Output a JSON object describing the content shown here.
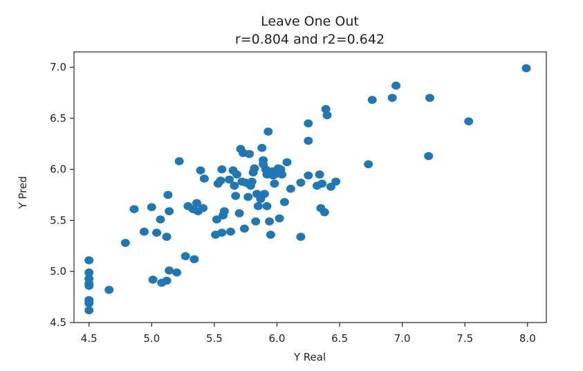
{
  "chart_data": {
    "type": "scatter",
    "title": "Leave One Out",
    "subtitle": "r=0.804 and r2=0.642",
    "xlabel": "Y Real",
    "ylabel": "Y Pred",
    "xlim": [
      4.38,
      8.15
    ],
    "ylim": [
      4.5,
      7.15
    ],
    "x_ticks": [
      4.5,
      5.0,
      5.5,
      6.0,
      6.5,
      7.0,
      7.5,
      8.0
    ],
    "x_tick_labels": [
      "4.5",
      "5.0",
      "5.5",
      "6.0",
      "6.5",
      "7.0",
      "7.5",
      "8.0"
    ],
    "y_ticks": [
      4.5,
      5.0,
      5.5,
      6.0,
      6.5,
      7.0
    ],
    "y_tick_labels": [
      "4.5",
      "5.0",
      "5.5",
      "6.0",
      "6.5",
      "7.0"
    ],
    "grid": false,
    "marker_color": "#1f77b4",
    "series": [
      {
        "points": [
          [
            4.5,
            5.11
          ],
          [
            4.5,
            4.99
          ],
          [
            4.5,
            4.93
          ],
          [
            4.5,
            4.88
          ],
          [
            4.5,
            4.86
          ],
          [
            4.5,
            4.72
          ],
          [
            4.5,
            4.69
          ],
          [
            4.5,
            4.62
          ],
          [
            4.66,
            4.82
          ],
          [
            4.79,
            5.28
          ],
          [
            4.86,
            5.61
          ],
          [
            4.94,
            5.39
          ],
          [
            5.0,
            5.63
          ],
          [
            5.01,
            4.92
          ],
          [
            5.04,
            5.38
          ],
          [
            5.07,
            5.51
          ],
          [
            5.08,
            4.89
          ],
          [
            5.12,
            4.91
          ],
          [
            5.12,
            5.34
          ],
          [
            5.13,
            5.75
          ],
          [
            5.14,
            5.59
          ],
          [
            5.14,
            5.01
          ],
          [
            5.2,
            4.99
          ],
          [
            5.22,
            6.08
          ],
          [
            5.27,
            5.15
          ],
          [
            5.29,
            5.64
          ],
          [
            5.33,
            5.61
          ],
          [
            5.34,
            5.12
          ],
          [
            5.36,
            5.67
          ],
          [
            5.37,
            5.59
          ],
          [
            5.39,
            5.99
          ],
          [
            5.41,
            5.62
          ],
          [
            5.42,
            5.91
          ],
          [
            5.51,
            5.36
          ],
          [
            5.52,
            5.51
          ],
          [
            5.53,
            5.86
          ],
          [
            5.55,
            5.89
          ],
          [
            5.56,
            6.0
          ],
          [
            5.56,
            5.38
          ],
          [
            5.57,
            5.55
          ],
          [
            5.58,
            5.59
          ],
          [
            5.62,
            5.9
          ],
          [
            5.63,
            5.39
          ],
          [
            5.65,
            5.99
          ],
          [
            5.66,
            5.84
          ],
          [
            5.67,
            5.74
          ],
          [
            5.68,
            5.95
          ],
          [
            5.7,
            5.57
          ],
          [
            5.71,
            6.2
          ],
          [
            5.72,
            5.88
          ],
          [
            5.73,
            6.16
          ],
          [
            5.74,
            5.42
          ],
          [
            5.75,
            5.87
          ],
          [
            5.77,
            5.73
          ],
          [
            5.78,
            6.15
          ],
          [
            5.79,
            5.84
          ],
          [
            5.8,
            5.88
          ],
          [
            5.81,
            5.97
          ],
          [
            5.82,
            6.01
          ],
          [
            5.83,
            5.49
          ],
          [
            5.84,
            5.76
          ],
          [
            5.85,
            5.64
          ],
          [
            5.87,
            5.71
          ],
          [
            5.88,
            6.21
          ],
          [
            5.89,
            6.09
          ],
          [
            5.89,
            6.05
          ],
          [
            5.9,
            5.76
          ],
          [
            5.91,
            6.0
          ],
          [
            5.92,
            5.95
          ],
          [
            5.92,
            5.64
          ],
          [
            5.93,
            6.37
          ],
          [
            5.94,
            5.49
          ],
          [
            5.95,
            5.36
          ],
          [
            5.96,
            5.98
          ],
          [
            5.97,
            5.94
          ],
          [
            5.98,
            5.86
          ],
          [
            6.0,
            5.96
          ],
          [
            6.01,
            6.01
          ],
          [
            6.02,
            5.52
          ],
          [
            6.03,
            6.0
          ],
          [
            6.04,
            5.95
          ],
          [
            6.06,
            5.68
          ],
          [
            6.08,
            6.07
          ],
          [
            6.11,
            5.81
          ],
          [
            6.19,
            5.34
          ],
          [
            6.19,
            5.87
          ],
          [
            6.25,
            5.94
          ],
          [
            6.25,
            6.45
          ],
          [
            6.25,
            6.28
          ],
          [
            6.32,
            5.84
          ],
          [
            6.34,
            5.95
          ],
          [
            6.35,
            5.62
          ],
          [
            6.36,
            5.86
          ],
          [
            6.38,
            5.58
          ],
          [
            6.39,
            6.59
          ],
          [
            6.4,
            6.53
          ],
          [
            6.43,
            5.83
          ],
          [
            6.47,
            5.88
          ],
          [
            6.73,
            6.05
          ],
          [
            6.76,
            6.68
          ],
          [
            6.92,
            6.7
          ],
          [
            6.95,
            6.82
          ],
          [
            7.21,
            6.13
          ],
          [
            7.22,
            6.7
          ],
          [
            7.53,
            6.47
          ],
          [
            7.99,
            6.99
          ]
        ]
      }
    ]
  }
}
